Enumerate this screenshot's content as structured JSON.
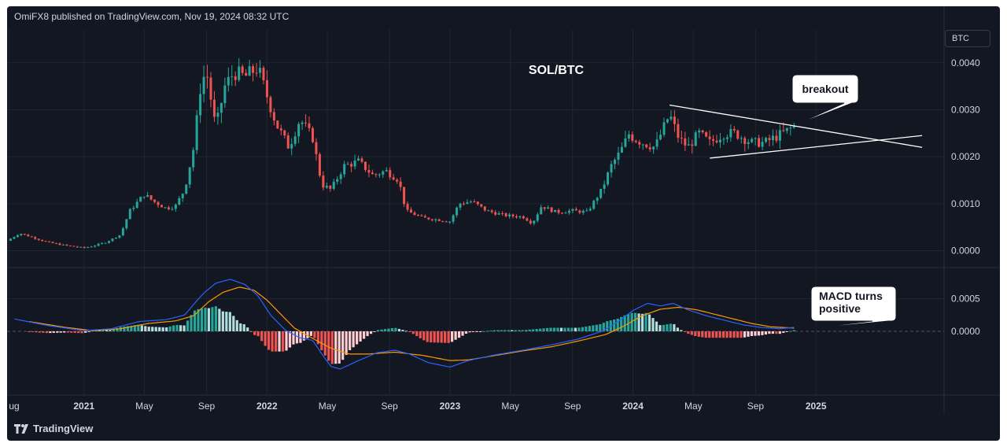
{
  "header": {
    "published": "OmiFX8 published on TradingView.com, Nov 19, 2024 08:32 UTC"
  },
  "unit": "BTC",
  "footer": {
    "brand": "TradingView",
    "logo_icon": "tradingview-logo-icon"
  },
  "colors": {
    "background": "#131722",
    "up": "#26a69a",
    "down": "#ef5350",
    "macd_line": "#2962ff",
    "signal_line": "#ff9800",
    "hist_up_strong": "#26a69a",
    "hist_up_weak": "#b2dfdb",
    "hist_down_strong": "#ef5350",
    "hist_down_weak": "#ffcdd2",
    "text": "#d1d4dc",
    "grid": "#222631"
  },
  "chart_data": [
    {
      "type": "candlestick",
      "title": "SOL/BTC",
      "ylim": [
        -0.00036,
        0.0047
      ],
      "yticks": [
        "0.0040",
        "0.0030",
        "0.0020",
        "0.0010",
        "0.0000"
      ],
      "x_range": [
        2020.58,
        2025.7
      ],
      "x_ticks": [
        {
          "label": "ug",
          "x": 2020.59
        },
        {
          "label": "2021",
          "x": 2021.0
        },
        {
          "label": "May",
          "x": 2021.33
        },
        {
          "label": "Sep",
          "x": 2021.67
        },
        {
          "label": "2022",
          "x": 2022.0
        },
        {
          "label": "May",
          "x": 2022.33
        },
        {
          "label": "Sep",
          "x": 2022.67
        },
        {
          "label": "2023",
          "x": 2023.0
        },
        {
          "label": "May",
          "x": 2023.33
        },
        {
          "label": "Sep",
          "x": 2023.67
        },
        {
          "label": "2024",
          "x": 2024.0
        },
        {
          "label": "May",
          "x": 2024.33
        },
        {
          "label": "Sep",
          "x": 2024.67
        },
        {
          "label": "2025",
          "x": 2025.0
        }
      ],
      "price_points": [
        [
          2020.58,
          0.00021
        ],
        [
          2020.65,
          0.00037
        ],
        [
          2020.72,
          0.00028
        ],
        [
          2020.8,
          0.00018
        ],
        [
          2020.9,
          0.00011
        ],
        [
          2021.0,
          6e-05
        ],
        [
          2021.05,
          0.0001
        ],
        [
          2021.12,
          0.00018
        ],
        [
          2021.2,
          0.00034
        ],
        [
          2021.25,
          0.00085
        ],
        [
          2021.33,
          0.0012
        ],
        [
          2021.38,
          0.00105
        ],
        [
          2021.45,
          0.0009
        ],
        [
          2021.5,
          0.00095
        ],
        [
          2021.55,
          0.0013
        ],
        [
          2021.6,
          0.0022
        ],
        [
          2021.64,
          0.0036
        ],
        [
          2021.67,
          0.0038
        ],
        [
          2021.72,
          0.0026
        ],
        [
          2021.77,
          0.0035
        ],
        [
          2021.82,
          0.0038
        ],
        [
          2021.88,
          0.0037
        ],
        [
          2021.95,
          0.0039
        ],
        [
          2022.0,
          0.0033
        ],
        [
          2022.05,
          0.0027
        ],
        [
          2022.12,
          0.0022
        ],
        [
          2022.18,
          0.0028
        ],
        [
          2022.25,
          0.0024
        ],
        [
          2022.3,
          0.0014
        ],
        [
          2022.35,
          0.0013
        ],
        [
          2022.42,
          0.0018
        ],
        [
          2022.5,
          0.0019
        ],
        [
          2022.58,
          0.0016
        ],
        [
          2022.65,
          0.0017
        ],
        [
          2022.72,
          0.0015
        ],
        [
          2022.76,
          0.00085
        ],
        [
          2022.85,
          0.0007
        ],
        [
          2022.95,
          0.00065
        ],
        [
          2023.0,
          0.00062
        ],
        [
          2023.05,
          0.001
        ],
        [
          2023.12,
          0.00105
        ],
        [
          2023.2,
          0.00085
        ],
        [
          2023.3,
          0.00075
        ],
        [
          2023.4,
          0.00072
        ],
        [
          2023.45,
          0.00058
        ],
        [
          2023.5,
          0.00095
        ],
        [
          2023.58,
          0.00082
        ],
        [
          2023.67,
          0.00085
        ],
        [
          2023.75,
          0.00082
        ],
        [
          2023.83,
          0.0013
        ],
        [
          2023.88,
          0.0018
        ],
        [
          2023.93,
          0.0021
        ],
        [
          2023.98,
          0.0025
        ],
        [
          2024.0,
          0.0024
        ],
        [
          2024.05,
          0.0023
        ],
        [
          2024.12,
          0.0022
        ],
        [
          2024.2,
          0.0029
        ],
        [
          2024.25,
          0.0024
        ],
        [
          2024.3,
          0.0022
        ],
        [
          2024.36,
          0.0025
        ],
        [
          2024.42,
          0.0023
        ],
        [
          2024.5,
          0.0025
        ],
        [
          2024.56,
          0.0025
        ],
        [
          2024.6,
          0.0024
        ],
        [
          2024.65,
          0.0023
        ],
        [
          2024.72,
          0.0023
        ],
        [
          2024.78,
          0.00242
        ],
        [
          2024.84,
          0.00255
        ],
        [
          2024.88,
          0.00265
        ]
      ],
      "pattern_lines": [
        {
          "name": "triangle-upper-line",
          "from": [
            2024.2,
            0.0031
          ],
          "to": [
            2025.58,
            0.0022
          ]
        },
        {
          "name": "triangle-lower-line",
          "from": [
            2024.42,
            0.00197
          ],
          "to": [
            2025.58,
            0.00245
          ]
        }
      ],
      "annotation": {
        "text": "breakout",
        "point": [
          2024.89,
          0.00268
        ]
      }
    },
    {
      "type": "macd",
      "ylim": [
        -0.00098,
        0.00098
      ],
      "yticks": [
        "0.0005",
        "0.0000"
      ],
      "macd": [
        [
          2020.62,
          0.00019
        ],
        [
          2020.8,
          9e-05
        ],
        [
          2021.0,
          1e-05
        ],
        [
          2021.15,
          4e-05
        ],
        [
          2021.3,
          0.00015
        ],
        [
          2021.45,
          0.00018
        ],
        [
          2021.55,
          0.00025
        ],
        [
          2021.62,
          0.00048
        ],
        [
          2021.66,
          0.0006
        ],
        [
          2021.72,
          0.00074
        ],
        [
          2021.8,
          0.0008
        ],
        [
          2021.88,
          0.00072
        ],
        [
          2021.95,
          0.00055
        ],
        [
          2022.02,
          0.00025
        ],
        [
          2022.1,
          2e-05
        ],
        [
          2022.18,
          -0.0001
        ],
        [
          2022.25,
          -0.00014
        ],
        [
          2022.3,
          -0.00035
        ],
        [
          2022.35,
          -0.00054
        ],
        [
          2022.4,
          -0.00058
        ],
        [
          2022.5,
          -0.00045
        ],
        [
          2022.6,
          -0.00033
        ],
        [
          2022.7,
          -0.00029
        ],
        [
          2022.78,
          -0.00035
        ],
        [
          2022.88,
          -0.00048
        ],
        [
          2023.0,
          -0.00055
        ],
        [
          2023.1,
          -0.00045
        ],
        [
          2023.25,
          -0.00036
        ],
        [
          2023.4,
          -0.00029
        ],
        [
          2023.55,
          -0.00021
        ],
        [
          2023.7,
          -0.00012
        ],
        [
          2023.83,
          0.0
        ],
        [
          2023.92,
          0.00015
        ],
        [
          2024.0,
          0.00032
        ],
        [
          2024.08,
          0.00043
        ],
        [
          2024.15,
          0.00039
        ],
        [
          2024.22,
          0.00043
        ],
        [
          2024.3,
          0.00033
        ],
        [
          2024.4,
          0.00024
        ],
        [
          2024.5,
          0.00017
        ],
        [
          2024.6,
          0.0001
        ],
        [
          2024.7,
          6e-05
        ],
        [
          2024.8,
          4e-05
        ],
        [
          2024.88,
          6e-05
        ]
      ],
      "signal": [
        [
          2020.7,
          0.00015
        ],
        [
          2020.9,
          6e-05
        ],
        [
          2021.05,
          1e-05
        ],
        [
          2021.2,
          4e-05
        ],
        [
          2021.35,
          0.00012
        ],
        [
          2021.5,
          0.00016
        ],
        [
          2021.6,
          0.00024
        ],
        [
          2021.68,
          0.00045
        ],
        [
          2021.76,
          0.0006
        ],
        [
          2021.85,
          0.00068
        ],
        [
          2021.93,
          0.00063
        ],
        [
          2022.0,
          0.00048
        ],
        [
          2022.08,
          0.00025
        ],
        [
          2022.15,
          5e-05
        ],
        [
          2022.25,
          -0.00011
        ],
        [
          2022.35,
          -0.00026
        ],
        [
          2022.45,
          -0.00035
        ],
        [
          2022.55,
          -0.00035
        ],
        [
          2022.7,
          -0.00032
        ],
        [
          2022.85,
          -0.00037
        ],
        [
          2023.0,
          -0.00045
        ],
        [
          2023.1,
          -0.00044
        ],
        [
          2023.25,
          -0.00037
        ],
        [
          2023.4,
          -0.0003
        ],
        [
          2023.55,
          -0.00024
        ],
        [
          2023.7,
          -0.00015
        ],
        [
          2023.85,
          -5e-05
        ],
        [
          2023.95,
          8e-05
        ],
        [
          2024.05,
          0.00024
        ],
        [
          2024.15,
          0.00034
        ],
        [
          2024.25,
          0.00037
        ],
        [
          2024.35,
          0.00033
        ],
        [
          2024.45,
          0.00026
        ],
        [
          2024.55,
          0.00019
        ],
        [
          2024.65,
          0.00012
        ],
        [
          2024.75,
          7e-05
        ],
        [
          2024.88,
          5e-05
        ]
      ],
      "annotation": {
        "text": [
          "MACD turns",
          "positive"
        ],
        "point": [
          2024.89,
          2e-05
        ]
      }
    }
  ]
}
